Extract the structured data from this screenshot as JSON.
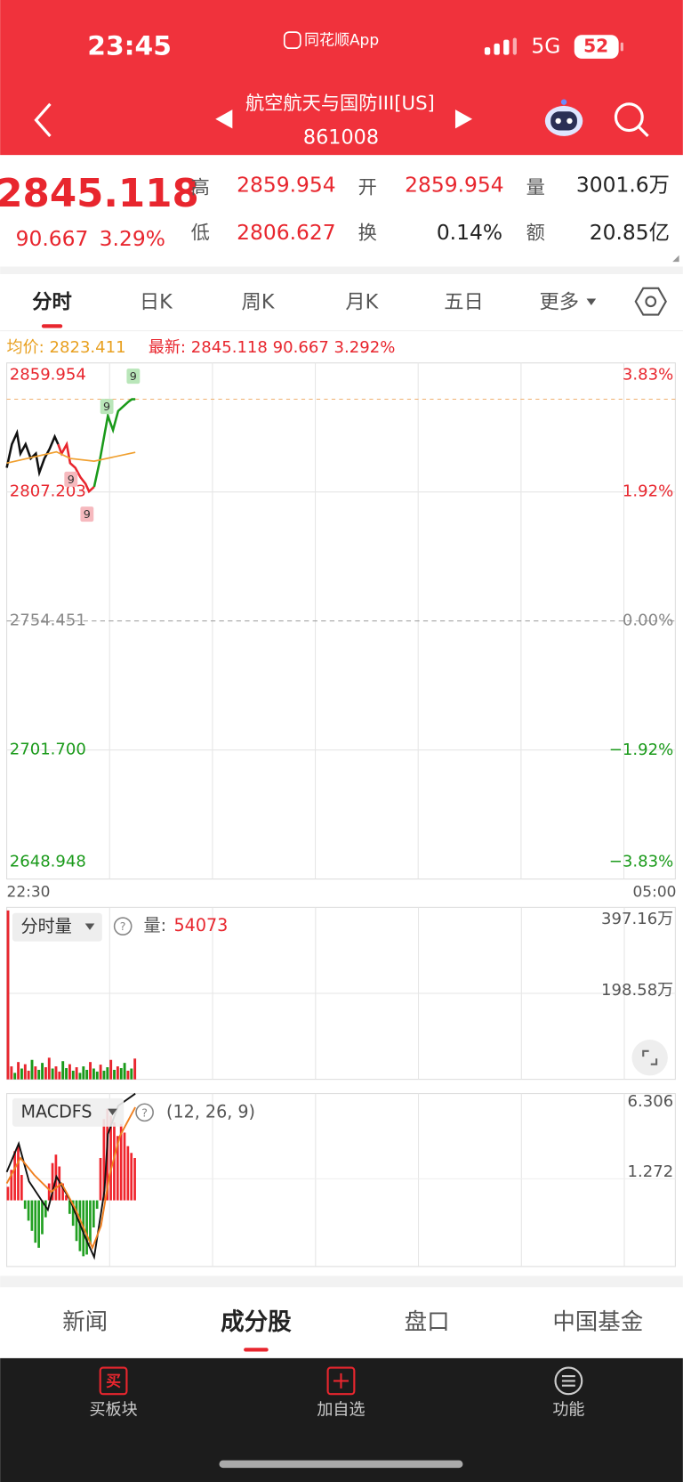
{
  "status_bar": {
    "time": "23:45",
    "app": "同花顺App",
    "network": "5G",
    "battery": "52"
  },
  "header": {
    "title": "航空航天与国防III[US]",
    "code": "861008"
  },
  "quote": {
    "price": "2845.118",
    "change": "90.667",
    "change_pct": "3.29%",
    "fields": [
      {
        "label": "高",
        "value": "2859.954"
      },
      {
        "label": "开",
        "value": "2859.954"
      },
      {
        "label": "量",
        "value": "3001.6万"
      },
      {
        "label": "低",
        "value": "2806.627"
      },
      {
        "label": "换",
        "value": "0.14%"
      },
      {
        "label": "额",
        "value": "20.85亿"
      }
    ]
  },
  "tabs": [
    "分时",
    "日K",
    "周K",
    "月K",
    "五日",
    "更多"
  ],
  "info": {
    "avg_label": "均价:",
    "avg": "2823.411",
    "latest_label": "最新:",
    "latest": "2845.118",
    "change": "90.667",
    "pct": "3.292%"
  },
  "chart_data": [
    {
      "type": "line",
      "xlim": [
        0,
        390
      ],
      "xticks": [
        {
          "value": 0,
          "label": "22:30"
        },
        {
          "value": 390,
          "label": "05:00"
        }
      ],
      "xgrid": [
        60,
        120,
        180,
        240,
        300,
        360
      ],
      "ylim": [
        2648.948,
        2859.954
      ],
      "yticks": [
        2859.954,
        2807.203,
        2754.451,
        {
          "value": 2701.7,
          "label": "2701.700"
        },
        2648.948
      ],
      "y2lim": [
        -3.83,
        3.83
      ],
      "y2ticks": [
        {
          "value": 3.83,
          "label": "3.83%"
        },
        {
          "value": 1.92,
          "label": "1.92%"
        },
        {
          "value": 0,
          "label": "0.00%"
        },
        {
          "value": -1.92,
          "label": "−1.92%"
        },
        {
          "value": -3.83,
          "label": "−3.83%"
        }
      ],
      "series": [
        {
          "color": "#111111",
          "x": [
            0,
            3,
            6,
            8,
            11,
            14,
            17,
            19,
            22,
            25,
            28,
            30
          ],
          "values": [
            2817.1,
            2826.7,
            2831.4,
            2822.9,
            2826.7,
            2820.9,
            2822.9,
            2815.1,
            2820.9,
            2824.8,
            2829.8,
            2826.7
          ]
        },
        {
          "color": "#e8262e",
          "x": [
            30,
            32,
            35,
            37,
            40,
            43,
            46,
            48,
            51
          ],
          "values": [
            2826.7,
            2822.9,
            2826.7,
            2819.0,
            2817.1,
            2813.2,
            2810.5,
            2807.4,
            2809.3
          ]
        },
        {
          "color": "#1a9a1a",
          "x": [
            51,
            54,
            57,
            59,
            62,
            65,
            68,
            71,
            73,
            75
          ],
          "values": [
            2809.3,
            2819.0,
            2830.6,
            2838.3,
            2832.5,
            2840.3,
            2842.2,
            2844.1,
            2845.1,
            2845.118
          ]
        },
        {
          "color": "#f0a030",
          "x": [
            0,
            29,
            37,
            51,
            75
          ],
          "values": [
            2819.0,
            2823.6,
            2820.9,
            2819.8,
            2823.411
          ]
        }
      ],
      "annotations": [
        {
          "text": "9",
          "color": "#f6b9be"
        },
        {
          "text": "9",
          "color": "#f6b9be"
        },
        {
          "text": "9",
          "color": "#b9e6b9"
        },
        {
          "text": "9",
          "color": "#b9e6b9"
        }
      ]
    },
    {
      "type": "bar",
      "title": "分时量",
      "readout_label": "量:",
      "readout_value": "54073",
      "xlim": [
        0,
        390
      ],
      "ylim": [
        0,
        397.16
      ],
      "yticks": [
        {
          "value": 397.16,
          "label": "397.16万"
        },
        {
          "value": 198.58,
          "label": "198.58万"
        }
      ],
      "x": [
        0,
        2,
        4,
        6,
        8,
        10,
        12,
        14,
        16,
        18,
        20,
        22,
        24,
        26,
        28,
        30,
        32,
        34,
        36,
        38,
        40,
        42,
        44,
        46,
        48,
        50,
        52,
        54,
        56,
        58,
        60,
        62,
        64,
        66,
        68,
        70,
        72,
        74
      ],
      "values": [
        390,
        30,
        15,
        40,
        25,
        35,
        20,
        45,
        30,
        22,
        38,
        28,
        50,
        25,
        30,
        18,
        42,
        26,
        35,
        20,
        28,
        15,
        30,
        22,
        40,
        25,
        18,
        34,
        20,
        28,
        45,
        22,
        30,
        26,
        38,
        20,
        25,
        48
      ],
      "palette": [
        "#e8262e",
        "#1a9a1a"
      ],
      "color_index": [
        0,
        0,
        1,
        0,
        1,
        0,
        0,
        1,
        0,
        1,
        1,
        0,
        0,
        1,
        0,
        0,
        1,
        1,
        0,
        1,
        0,
        1,
        1,
        1,
        0,
        1,
        1,
        0,
        1,
        1,
        0,
        1,
        0,
        1,
        1,
        0,
        1,
        0
      ]
    },
    {
      "type": "macd",
      "title": "MACDFS",
      "params": "(12, 26, 9)",
      "xlim": [
        0,
        390
      ],
      "ylim": [
        -3.906,
        6.306
      ],
      "yticks": [
        6.306,
        1.272
      ],
      "x": [
        0,
        2,
        4,
        6,
        8,
        10,
        12,
        14,
        16,
        18,
        20,
        22,
        24,
        26,
        28,
        30,
        32,
        34,
        36,
        38,
        40,
        42,
        44,
        46,
        48,
        50,
        52,
        54,
        56,
        58,
        60,
        62,
        64,
        66,
        68,
        70,
        72,
        74
      ],
      "values": [
        0.8,
        1.8,
        2.9,
        3.2,
        1.5,
        -0.5,
        -1.2,
        -1.8,
        -2.5,
        -2.8,
        -2.0,
        -1.0,
        1.0,
        2.2,
        2.7,
        2.0,
        1.0,
        0.3,
        -0.8,
        -1.5,
        -2.4,
        -3.0,
        -3.3,
        -3.2,
        -2.6,
        -1.6,
        -0.5,
        2.5,
        4.8,
        5.4,
        5.0,
        4.6,
        3.8,
        4.5,
        4.0,
        3.2,
        2.8,
        2.5
      ],
      "up_color": "#f0262e",
      "down_color": "#22a022",
      "lines": [
        {
          "color": "#111111",
          "x": [
            0,
            7,
            13,
            24,
            29,
            37,
            46,
            51,
            57,
            59,
            65,
            75
          ],
          "values": [
            1.67,
            3.35,
            1.12,
            -0.56,
            1.4,
            0,
            -2.23,
            -3.35,
            0.56,
            3.91,
            5.58,
            6.3
          ]
        },
        {
          "color": "#f08020",
          "x": [
            0,
            8,
            16,
            26,
            32,
            40,
            50,
            55,
            60,
            66,
            75
          ],
          "values": [
            1.0,
            2.5,
            1.5,
            0.5,
            1.0,
            -0.5,
            -2.8,
            -1.5,
            1.5,
            3.8,
            5.5
          ]
        }
      ]
    }
  ],
  "bottom_tabs": [
    "新闻",
    "成分股",
    "盘口",
    "中国基金"
  ],
  "toolbar": [
    {
      "icon": "买",
      "label": "买板块"
    },
    {
      "label": "加自选"
    },
    {
      "label": "功能"
    }
  ]
}
